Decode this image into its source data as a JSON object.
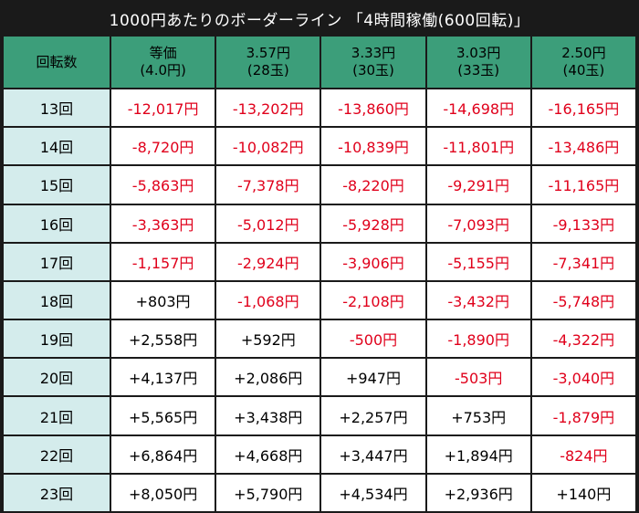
{
  "title": "1000円あたりのボーダーライン 「4時間稼働(600回転)」",
  "header": {
    "first": "回転数",
    "columns": [
      {
        "line1": "等価",
        "line2": "(4.0円)"
      },
      {
        "line1": "3.57円",
        "line2": "(28玉)"
      },
      {
        "line1": "3.33円",
        "line2": "(30玉)"
      },
      {
        "line1": "3.03円",
        "line2": "(33玉)"
      },
      {
        "line1": "2.50円",
        "line2": "(40玉)"
      }
    ]
  },
  "rows": [
    {
      "label": "13回",
      "values": [
        "-12,017円",
        "-13,202円",
        "-13,860円",
        "-14,698円",
        "-16,165円"
      ]
    },
    {
      "label": "14回",
      "values": [
        "-8,720円",
        "-10,082円",
        "-10,839円",
        "-11,801円",
        "-13,486円"
      ]
    },
    {
      "label": "15回",
      "values": [
        "-5,863円",
        "-7,378円",
        "-8,220円",
        "-9,291円",
        "-11,165円"
      ]
    },
    {
      "label": "16回",
      "values": [
        "-3,363円",
        "-5,012円",
        "-5,928円",
        "-7,093円",
        "-9,133円"
      ]
    },
    {
      "label": "17回",
      "values": [
        "-1,157円",
        "-2,924円",
        "-3,906円",
        "-5,155円",
        "-7,341円"
      ]
    },
    {
      "label": "18回",
      "values": [
        "+803円",
        "-1,068円",
        "-2,108円",
        "-3,432円",
        "-5,748円"
      ]
    },
    {
      "label": "19回",
      "values": [
        "+2,558円",
        "+592円",
        "-500円",
        "-1,890円",
        "-4,322円"
      ]
    },
    {
      "label": "20回",
      "values": [
        "+4,137円",
        "+2,086円",
        "+947円",
        "-503円",
        "-3,040円"
      ]
    },
    {
      "label": "21回",
      "values": [
        "+5,565円",
        "+3,438円",
        "+2,257円",
        "+753円",
        "-1,879円"
      ]
    },
    {
      "label": "22回",
      "values": [
        "+6,864円",
        "+4,668円",
        "+3,447円",
        "+1,894円",
        "-824円"
      ]
    },
    {
      "label": "23回",
      "values": [
        "+8,050円",
        "+5,790円",
        "+4,534円",
        "+2,936円",
        "+140円"
      ]
    }
  ],
  "colors": {
    "header_bg": "#3c9e7a",
    "rowlabel_bg": "#d4ecec",
    "negative": "#e0001b",
    "positive": "#000000",
    "frame": "#1a1a1a"
  }
}
